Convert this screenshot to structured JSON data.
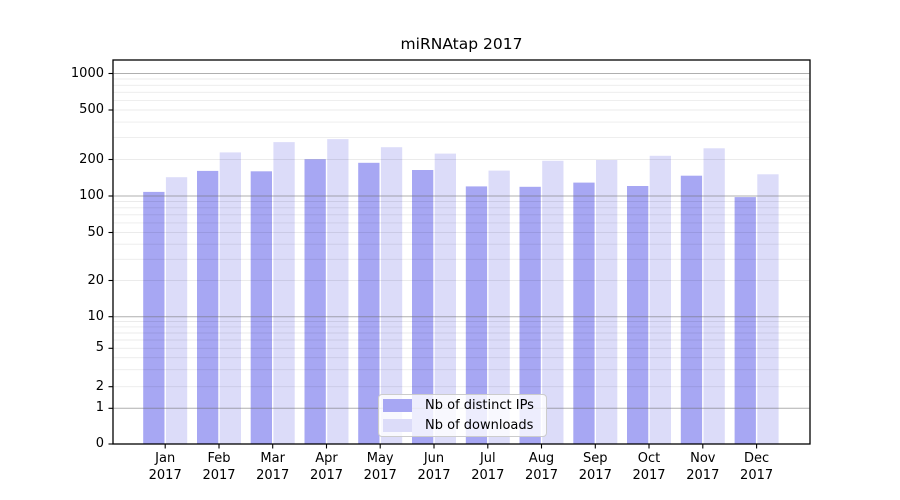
{
  "chart_data": {
    "type": "bar",
    "title": "miRNAtap 2017",
    "yscale": "symlog",
    "grid": true,
    "ylim": [
      0,
      1400
    ],
    "yticks": [
      0,
      1,
      2,
      5,
      10,
      20,
      50,
      100,
      200,
      500,
      1000
    ],
    "categories": [
      "Jan 2017",
      "Feb 2017",
      "Mar 2017",
      "Apr 2017",
      "May 2017",
      "Jun 2017",
      "Jul 2017",
      "Aug 2017",
      "Sep 2017",
      "Oct 2017",
      "Nov 2017",
      "Dec 2017"
    ],
    "series": [
      {
        "name": "Nb of distinct IPs",
        "color": "#a7a7f3",
        "values": [
          108,
          161,
          160,
          201,
          188,
          164,
          120,
          119,
          129,
          121,
          147,
          98
        ]
      },
      {
        "name": "Nb of downloads",
        "color": "#dcdcf9",
        "values": [
          143,
          228,
          276,
          292,
          251,
          223,
          162,
          195,
          198,
          214,
          246,
          151
        ]
      }
    ],
    "legend": {
      "position": "lower center"
    }
  }
}
